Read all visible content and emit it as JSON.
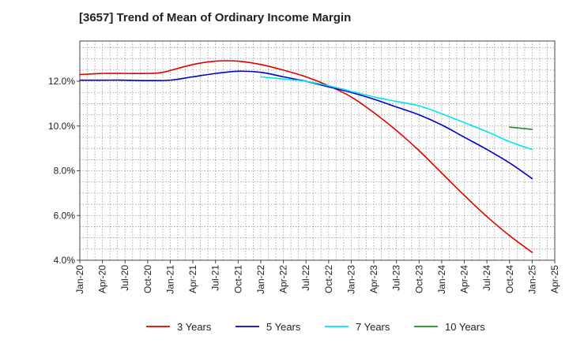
{
  "title": "[3657]  Trend of Mean of Ordinary Income Margin",
  "chart_data": {
    "type": "line",
    "title": "[3657]  Trend of Mean of Ordinary Income Margin",
    "xlabel": "",
    "ylabel": "",
    "x_start": "Jan-20",
    "x_ticks": [
      "Jan-20",
      "Apr-20",
      "Jul-20",
      "Oct-20",
      "Jan-21",
      "Apr-21",
      "Jul-21",
      "Oct-21",
      "Jan-22",
      "Apr-22",
      "Jul-22",
      "Oct-22",
      "Jan-23",
      "Apr-23",
      "Jul-23",
      "Oct-23",
      "Jan-24",
      "Apr-24",
      "Jul-24",
      "Oct-24",
      "Jan-25",
      "Apr-25"
    ],
    "y_ticks": [
      4.0,
      6.0,
      8.0,
      10.0,
      12.0
    ],
    "y_tick_labels": [
      "4.0%",
      "6.0%",
      "8.0%",
      "10.0%",
      "12.0%"
    ],
    "ylim": [
      4.0,
      13.8
    ],
    "grid": true,
    "legend_position": "bottom",
    "series": [
      {
        "name": "3 Years",
        "color": "#dd0000",
        "points": [
          [
            "Jan-20",
            12.3
          ],
          [
            "Apr-20",
            12.35
          ],
          [
            "Jul-20",
            12.35
          ],
          [
            "Oct-20",
            12.35
          ],
          [
            "Dec-20",
            12.4
          ],
          [
            "Apr-21",
            12.75
          ],
          [
            "Jul-21",
            12.9
          ],
          [
            "Oct-21",
            12.9
          ],
          [
            "Jan-22",
            12.75
          ],
          [
            "Apr-22",
            12.5
          ],
          [
            "Jul-22",
            12.2
          ],
          [
            "Oct-22",
            11.8
          ],
          [
            "Jan-23",
            11.3
          ],
          [
            "Apr-23",
            10.6
          ],
          [
            "Jul-23",
            9.8
          ],
          [
            "Oct-23",
            8.9
          ],
          [
            "Jan-24",
            7.9
          ],
          [
            "Apr-24",
            6.9
          ],
          [
            "Jul-24",
            5.95
          ],
          [
            "Oct-24",
            5.1
          ],
          [
            "Jan-25",
            4.35
          ]
        ]
      },
      {
        "name": "5 Years",
        "color": "#0000cc",
        "points": [
          [
            "Jan-20",
            12.05
          ],
          [
            "Apr-20",
            12.05
          ],
          [
            "Jul-20",
            12.05
          ],
          [
            "Oct-20",
            12.03
          ],
          [
            "Jan-21",
            12.05
          ],
          [
            "Apr-21",
            12.2
          ],
          [
            "Jul-21",
            12.35
          ],
          [
            "Oct-21",
            12.45
          ],
          [
            "Jan-22",
            12.4
          ],
          [
            "Apr-22",
            12.2
          ],
          [
            "Jul-22",
            12.0
          ],
          [
            "Oct-22",
            11.75
          ],
          [
            "Jan-23",
            11.5
          ],
          [
            "Apr-23",
            11.2
          ],
          [
            "Jul-23",
            10.85
          ],
          [
            "Oct-23",
            10.5
          ],
          [
            "Jan-24",
            10.05
          ],
          [
            "Apr-24",
            9.5
          ],
          [
            "Jul-24",
            8.95
          ],
          [
            "Oct-24",
            8.35
          ],
          [
            "Jan-25",
            7.65
          ]
        ]
      },
      {
        "name": "7 Years",
        "color": "#00e5ee",
        "points": [
          [
            "Jan-22",
            12.2
          ],
          [
            "Apr-22",
            12.1
          ],
          [
            "Jul-22",
            12.0
          ],
          [
            "Oct-22",
            11.8
          ],
          [
            "Jan-23",
            11.55
          ],
          [
            "Apr-23",
            11.3
          ],
          [
            "Jul-23",
            11.1
          ],
          [
            "Oct-23",
            10.9
          ],
          [
            "Jan-24",
            10.55
          ],
          [
            "Apr-24",
            10.15
          ],
          [
            "Jul-24",
            9.75
          ],
          [
            "Oct-24",
            9.3
          ],
          [
            "Jan-25",
            8.95
          ]
        ]
      },
      {
        "name": "10 Years",
        "color": "#228b22",
        "points": [
          [
            "Oct-24",
            9.95
          ],
          [
            "Jan-25",
            9.85
          ]
        ]
      }
    ]
  }
}
